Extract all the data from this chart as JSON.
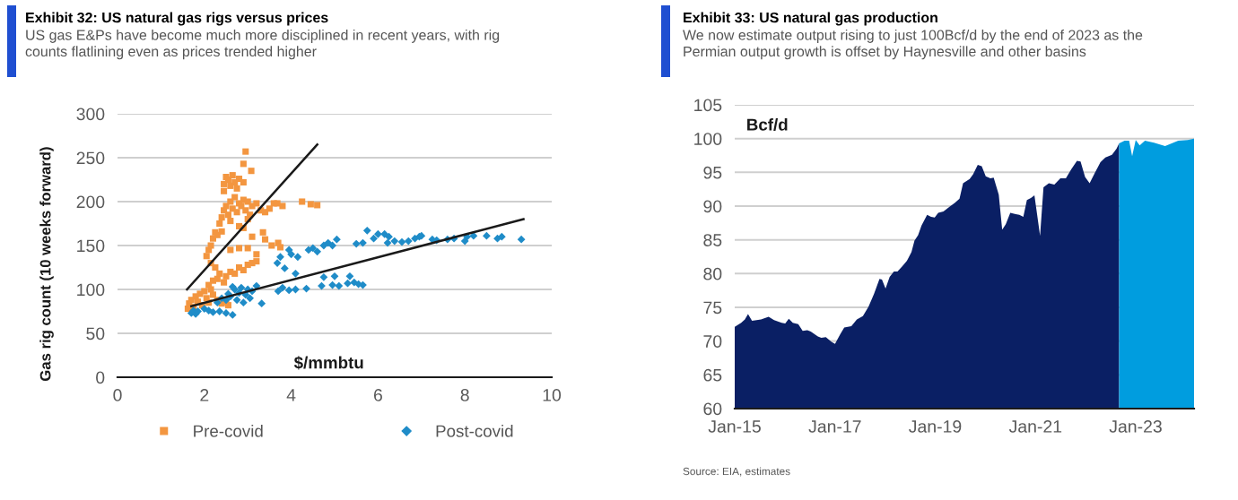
{
  "chart_data": [
    {
      "type": "scatter",
      "title": "Exhibit 32: US natural gas rigs versus prices",
      "subtitle": "US gas E&Ps have become much more disciplined in recent years, with rig counts flatlining even as prices trended higher",
      "xlabel": "$/mmbtu",
      "ylabel": "Gas rig count (10 weeks forward)",
      "xlim": [
        0,
        10
      ],
      "xticks": [
        0,
        2,
        4,
        6,
        8,
        10
      ],
      "ylim": [
        0,
        300
      ],
      "yticks": [
        0,
        50,
        100,
        150,
        200,
        250,
        300
      ],
      "grid": "y",
      "legend": "bottom",
      "series": [
        {
          "name": "Pre-covid",
          "color": "#f39640",
          "marker": "square",
          "x": [
            1.62,
            1.65,
            1.7,
            1.75,
            1.8,
            1.85,
            1.9,
            1.95,
            2.0,
            2.05,
            2.1,
            2.15,
            2.2,
            2.3,
            2.4,
            2.5,
            2.55,
            2.1,
            2.2,
            2.3,
            2.35,
            2.45,
            2.5,
            2.6,
            2.7,
            2.8,
            2.9,
            3.0,
            3.1,
            3.2,
            2.25,
            2.15,
            2.05,
            2.1,
            2.15,
            2.2,
            2.25,
            2.3,
            2.4,
            2.6,
            2.8,
            3.0,
            3.2,
            3.35,
            3.4,
            3.55,
            3.7,
            3.75,
            2.9,
            3.1,
            2.35,
            2.4,
            2.45,
            2.5,
            2.55,
            2.6,
            2.65,
            2.7,
            2.75,
            2.8,
            2.85,
            2.9,
            2.95,
            3.0,
            3.05,
            3.1,
            3.2,
            3.3,
            3.4,
            3.5,
            3.6,
            2.6,
            2.8,
            3.0,
            3.68,
            3.8,
            4.25,
            4.45,
            4.6,
            2.45,
            2.5,
            2.55,
            2.6,
            2.65,
            2.7,
            2.75,
            2.8,
            2.9,
            2.45,
            2.95,
            2.9,
            3.08
          ],
          "values": [
            78,
            84,
            88,
            80,
            92,
            86,
            95,
            82,
            98,
            90,
            85,
            100,
            94,
            88,
            84,
            86,
            82,
            105,
            110,
            112,
            118,
            108,
            115,
            120,
            118,
            125,
            122,
            128,
            130,
            132,
            125,
            130,
            138,
            145,
            150,
            158,
            165,
            162,
            166,
            145,
            147,
            147,
            140,
            165,
            157,
            150,
            153,
            148,
            170,
            160,
            175,
            182,
            190,
            195,
            185,
            200,
            192,
            205,
            188,
            198,
            195,
            202,
            190,
            200,
            185,
            195,
            198,
            190,
            188,
            192,
            198,
            178,
            172,
            180,
            198,
            195,
            200,
            197,
            196,
            220,
            228,
            225,
            218,
            230,
            222,
            215,
            226,
            222,
            212,
            257,
            243,
            235
          ]
        },
        {
          "name": "Post-covid",
          "color": "#1f8cc8",
          "marker": "diamond",
          "x": [
            1.7,
            1.75,
            1.8,
            1.85,
            2.0,
            2.1,
            2.2,
            2.35,
            2.5,
            2.65,
            2.3,
            2.4,
            2.5,
            2.55,
            2.6,
            2.7,
            2.75,
            2.8,
            2.85,
            2.9,
            3.0,
            3.05,
            3.1,
            3.2,
            3.32,
            2.65,
            2.95,
            3.7,
            3.8,
            3.95,
            4.1,
            4.35,
            4.7,
            4.95,
            5.1,
            5.3,
            5.45,
            5.55,
            5.65,
            4.75,
            5.0,
            5.35,
            3.68,
            3.75,
            3.85,
            3.95,
            4.0,
            4.15,
            4.1,
            4.4,
            4.5,
            4.6,
            4.75,
            4.85,
            5.05,
            4.95,
            5.5,
            5.65,
            5.75,
            5.9,
            6.0,
            6.15,
            6.25,
            6.22,
            6.38,
            6.55,
            6.7,
            6.85,
            6.95,
            7.0,
            7.25,
            7.35,
            7.6,
            7.75,
            8.0,
            8.05,
            8.2,
            8.5,
            8.75,
            8.85,
            9.3
          ],
          "values": [
            73,
            76,
            72,
            75,
            78,
            76,
            74,
            75,
            73,
            71,
            85,
            90,
            88,
            95,
            92,
            100,
            88,
            96,
            102,
            85,
            100,
            90,
            98,
            104,
            84,
            103,
            94,
            98,
            102,
            99,
            100,
            101,
            104,
            105,
            104,
            107,
            108,
            106,
            105,
            114,
            115,
            115,
            130,
            137,
            124,
            145,
            140,
            137,
            118,
            145,
            147,
            143,
            150,
            153,
            157,
            150,
            152,
            153,
            167,
            158,
            163,
            163,
            160,
            153,
            155,
            154,
            155,
            158,
            160,
            161,
            157,
            156,
            157,
            158,
            155,
            160,
            161,
            161,
            158,
            160,
            157
          ]
        },
        {
          "type": "line",
          "color": "#1a1a1a",
          "x": [
            1.6,
            4.6
          ],
          "values": [
            100,
            265
          ]
        },
        {
          "type": "line",
          "color": "#1a1a1a",
          "x": [
            1.7,
            9.35
          ],
          "values": [
            81,
            180
          ]
        }
      ]
    },
    {
      "type": "area",
      "title": "Exhibit 33: US natural gas production",
      "subtitle": "We now estimate output rising to just 100Bcf/d by the end of 2023 as the Permian output growth is offset by Haynesville and other basins",
      "ylabel": "Bcf/d",
      "xlim": [
        "2015-01-01",
        "2024-03-01"
      ],
      "xticks": [
        {
          "value": "2015-01-01",
          "label": "Jan-15"
        },
        {
          "value": "2017-01-01",
          "label": "Jan-17"
        },
        {
          "value": "2019-01-01",
          "label": "Jan-19"
        },
        {
          "value": "2021-01-01",
          "label": "Jan-21"
        },
        {
          "value": "2023-01-01",
          "label": "Jan-23"
        }
      ],
      "ylim": [
        60,
        105
      ],
      "yticks": [
        60,
        65,
        70,
        75,
        80,
        85,
        90,
        95,
        100,
        105
      ],
      "grid": "y",
      "series": [
        {
          "color": "#0a1f64",
          "x": [
            "2015-01-01",
            "2015-02-17",
            "2015-03-16",
            "2015-04-08",
            "2015-05-07",
            "2015-07-12",
            "2015-09-05",
            "2015-10-15",
            "2015-12-09",
            "2016-01-04",
            "2016-01-30",
            "2016-02-28",
            "2016-04-08",
            "2016-05-10",
            "2016-06-13",
            "2016-07-08",
            "2016-08-29",
            "2016-09-23",
            "2016-10-26",
            "2016-12-06",
            "2017-01-01",
            "2017-02-07",
            "2017-03-09",
            "2017-04-30",
            "2017-06-09",
            "2017-07-23",
            "2017-09-02",
            "2017-10-12",
            "2017-11-21",
            "2017-12-09",
            "2018-01-04",
            "2018-02-03",
            "2018-03-06",
            "2018-04-01",
            "2018-05-07",
            "2018-06-09",
            "2018-07-12",
            "2018-08-03",
            "2018-08-29",
            "2018-09-23",
            "2018-11-03",
            "2018-12-02",
            "2018-12-28",
            "2019-01-23",
            "2019-03-02",
            "2019-04-15",
            "2019-05-25",
            "2019-06-27",
            "2019-07-23",
            "2019-09-09",
            "2019-10-04",
            "2019-11-07",
            "2019-12-06",
            "2020-01-04",
            "2020-02-07",
            "2020-03-02",
            "2020-04-08",
            "2020-05-03",
            "2020-05-29",
            "2020-07-01",
            "2020-08-10",
            "2020-09-05",
            "2020-10-04",
            "2020-10-30",
            "2020-11-28",
            "2020-12-24",
            "2021-02-03",
            "2021-02-28",
            "2021-04-08",
            "2021-05-18",
            "2021-07-01",
            "2021-08-10",
            "2021-09-20",
            "2021-10-30",
            "2021-11-25",
            "2021-12-28",
            "2022-01-30",
            "2022-03-09",
            "2022-04-19",
            "2022-05-25",
            "2022-07-12",
            "2022-08-14",
            "2022-09-02"
          ],
          "values": [
            72.1,
            72.7,
            73.2,
            74.0,
            73.0,
            73.2,
            73.6,
            73.1,
            72.7,
            72.6,
            73.3,
            72.7,
            72.5,
            71.5,
            71.6,
            71.4,
            70.7,
            70.5,
            70.6,
            69.9,
            69.6,
            71.0,
            72.0,
            72.2,
            73.2,
            73.7,
            75.1,
            77.0,
            79.2,
            79.1,
            77.8,
            79.5,
            80.3,
            80.3,
            81.1,
            81.9,
            83.2,
            84.9,
            85.7,
            87.1,
            88.7,
            88.4,
            88.3,
            89.0,
            89.2,
            89.9,
            90.5,
            91.1,
            93.4,
            94.0,
            94.7,
            96.1,
            95.9,
            94.4,
            94.1,
            94.2,
            91.7,
            86.5,
            87.3,
            89.0,
            88.8,
            88.7,
            88.4,
            90.9,
            91.2,
            91.6,
            85.6,
            92.8,
            93.4,
            93.2,
            94.1,
            94.1,
            95.5,
            96.7,
            96.6,
            94.3,
            93.4,
            94.9,
            96.5,
            97.2,
            97.6,
            98.5,
            99.3
          ]
        },
        {
          "color": "#009ddf",
          "x": [
            "2022-09-02",
            "2022-10-12",
            "2022-11-14",
            "2022-12-06",
            "2023-01-01",
            "2023-01-30",
            "2023-03-09",
            "2023-05-14",
            "2023-08-03",
            "2023-11-07",
            "2024-01-15",
            "2024-03-01"
          ],
          "values": [
            99.3,
            99.7,
            99.7,
            97.4,
            99.8,
            99.0,
            99.7,
            99.4,
            98.9,
            99.7,
            99.8,
            100.0
          ]
        }
      ],
      "annotations": [
        "Source: EIA, estimates"
      ]
    }
  ]
}
